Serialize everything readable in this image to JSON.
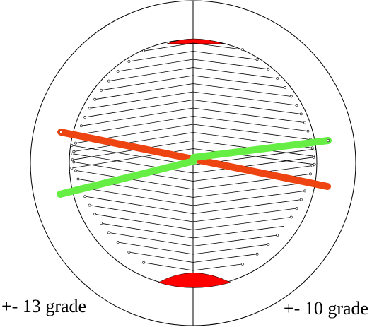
{
  "labels": {
    "left": "+- 13 grade",
    "right": "+- 10 grade"
  },
  "colors": {
    "outline": "#000000",
    "red_cap": "#ff0000",
    "red_line": "#ee4411",
    "green_line": "#66ee44"
  },
  "lines": {
    "red_line_tilt_deg": 13,
    "green_line_tilt_deg": 10
  }
}
